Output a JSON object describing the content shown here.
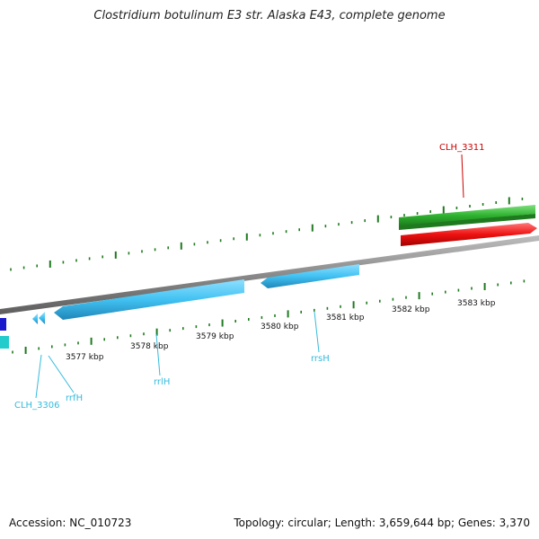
{
  "title": "Clostridium botulinum E3 str. Alaska E43, complete genome",
  "footer": {
    "accession": "Accession: NC_010723",
    "summary": "Topology: circular; Length: 3,659,644 bp; Genes: 3,370"
  },
  "ticks": [
    "3577 kbp",
    "3578 kbp",
    "3579 kbp",
    "3580 kbp",
    "3581 kbp",
    "3582 kbp",
    "3583 kbp"
  ],
  "gene_labels": {
    "clh3311": "CLH_3311",
    "clh3306": "CLH_3306",
    "rrfH": "rrfH",
    "rrlH": "rrlH",
    "rrsH": "rrsH"
  },
  "colors": {
    "backbone": "#8a8a8a",
    "rna_features": "#5bc8f0",
    "cds_forward": "#33aa33",
    "cds_reverse": "#ee1111",
    "cds_blue": "#1a1acc",
    "tick_marks": "#1f7a1f",
    "label_red": "#cc0000",
    "label_cyan": "#33bbdd"
  }
}
